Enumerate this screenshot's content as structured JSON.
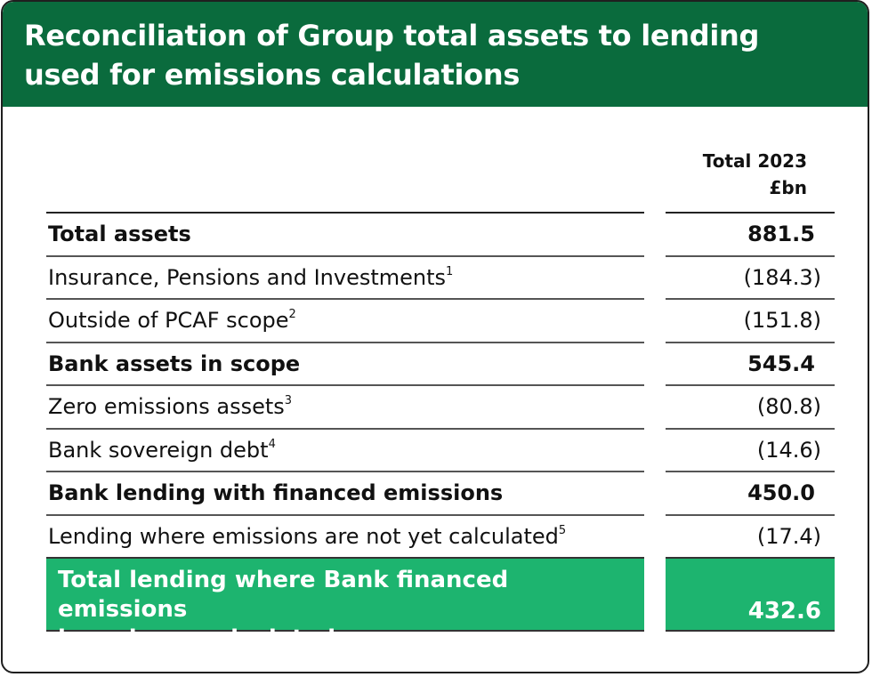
{
  "title": "Reconciliation of Group total assets to lending used for emissions calculations",
  "column_header": {
    "line1": "Total 2023",
    "line2": "£bn"
  },
  "rows": [
    {
      "label": "Total assets",
      "note": "",
      "value": "881.5"
    },
    {
      "label": "Insurance, Pensions and Investments",
      "note": "1",
      "value": "(184.3)"
    },
    {
      "label": "Outside of PCAF scope",
      "note": "2",
      "value": "(151.8)"
    },
    {
      "label": "Bank assets in scope",
      "note": "",
      "value": "545.4"
    },
    {
      "label": "Zero emissions assets",
      "note": "3",
      "value": "(80.8)"
    },
    {
      "label": "Bank sovereign debt",
      "note": "4",
      "value": "(14.6)"
    },
    {
      "label": "Bank lending with financed emissions",
      "note": "",
      "value": "450.0"
    },
    {
      "label": "Lending where emissions are not yet calculated",
      "note": "5",
      "value": "(17.4)"
    }
  ],
  "total": {
    "label_line1": "Total lending where Bank financed emissions",
    "label_line2": "have been calculated",
    "value": "432.6"
  },
  "colors": {
    "header_bg": "#0a6b3d",
    "total_bg": "#1db46f"
  }
}
